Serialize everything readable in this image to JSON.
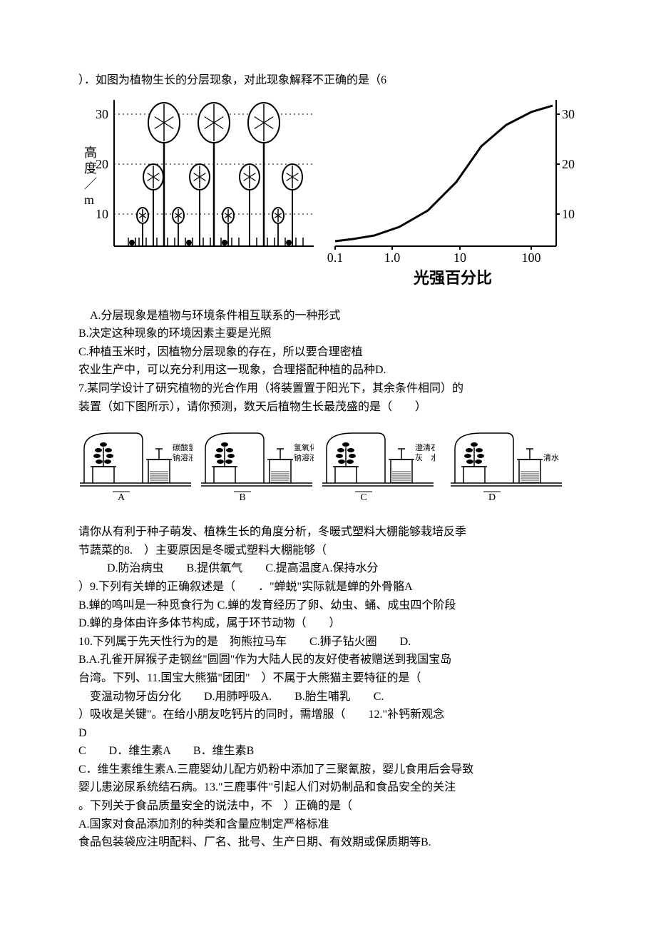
{
  "q6": {
    "stem": "）．如图为植物生长的分层现象，对此现象解释不正确的是（6",
    "optA": "A.分层现象是植物与环境条件相互联系的一种形式",
    "optB": "B.决定这种现象的环境因素主要是光照",
    "optC": "C.种植玉米时，因植物分层现象的存在，所以要合理密植",
    "optD": "农业生产中，可以充分利用这一现象，合理搭配种植的品种D.",
    "chart": {
      "left_axis_label_vertical": "高度／m",
      "left_ticks": [
        {
          "val": 10,
          "y": 170
        },
        {
          "val": 20,
          "y": 100
        },
        {
          "val": 30,
          "y": 30
        }
      ],
      "right_axis_label_vertical": "高度／m",
      "right_ticks": [
        {
          "val": 10,
          "y": 170
        },
        {
          "val": 20,
          "y": 100
        },
        {
          "val": 30,
          "y": 30
        }
      ],
      "x_ticks": [
        "0.1",
        "1.0",
        "10",
        "100"
      ],
      "x_label": "光强百分比",
      "curve_points": [
        [
          0,
          208
        ],
        [
          25,
          205
        ],
        [
          55,
          200
        ],
        [
          90,
          188
        ],
        [
          130,
          165
        ],
        [
          170,
          125
        ],
        [
          205,
          75
        ],
        [
          240,
          45
        ],
        [
          275,
          27
        ],
        [
          305,
          18
        ]
      ],
      "plants": {
        "tall": [
          {
            "x": 70
          },
          {
            "x": 140
          },
          {
            "x": 210
          }
        ],
        "mid": [
          {
            "x": 55
          },
          {
            "x": 120
          },
          {
            "x": 190
          },
          {
            "x": 250
          }
        ],
        "short": [
          {
            "x": 40
          },
          {
            "x": 90
          },
          {
            "x": 160
          },
          {
            "x": 230
          }
        ],
        "grass": [
          20,
          30,
          35,
          45,
          60,
          75,
          85,
          100,
          110,
          125,
          135,
          150,
          165,
          175,
          200,
          215,
          225,
          240,
          255,
          265
        ]
      },
      "stroke": "#000000",
      "fontsize_axis": 18,
      "fontsize_xlabel": 22
    }
  },
  "q7": {
    "stem1": "7.某同学设计了研究植物的光合作用（将装置置于阳光下，其余条件相同）的",
    "stem2": "装置（如下图所示），请你预测，数天后植物生长最茂盛的是（　　）",
    "beakers": [
      {
        "label": "A",
        "text1": "碳酸氢",
        "text2": "钠溶液"
      },
      {
        "label": "B",
        "text1": "氢氧化",
        "text2": "钠溶液"
      },
      {
        "label": "C",
        "text1": "澄清石",
        "text2": "灰　水"
      },
      {
        "label": "D",
        "text1": "",
        "text2": "清水"
      }
    ],
    "beaker_style": {
      "stroke": "#000000",
      "label_fontsize": 14,
      "text_fontsize": 11
    }
  },
  "q8": {
    "l1": "请你从有利于种子萌发、植株生长的角度分析，冬暖式塑料大棚能够栽培反季",
    "l2": "节蔬菜的8.　）主要原因是冬暖式塑料大棚能够（",
    "l3": "D.防治病虫　　B.提供氧气　　C.提高温度A.保持水分"
  },
  "q9": {
    "l1": "）9.下列有关蝉的正确叙述是（　　．\"蝉蜕\"实际就是蝉的外骨骼A",
    "l2": "B.蝉的鸣叫是一种觅食行为 C.蝉的发育经历了卵、幼虫、蛹、成虫四个阶段",
    "l3": "D.蝉的身体由许多体节构成，属于环节动物（　　）"
  },
  "q10": {
    "l1": "10.下列属于先天性行为的是　狗熊拉马车　　C.狮子钻火圈　　D.",
    "l2": "B.A.孔雀开屏猴子走钢丝\"圆圆\"作为大陆人民的友好使者被赠送到我国宝岛"
  },
  "q11": {
    "l1": "台湾。下列、11.国宝大熊猫\"团团\"　）不属于大熊猫主要特征的是（",
    "l2": "　变温动物牙齿分化　　D.用肺呼吸A.　　B.胎生哺乳　　C."
  },
  "q12": {
    "l1": "）吸收是关键\"。在给小朋友吃钙片的同时，需增服（　　12.\"补钙新观念",
    "l2": "D",
    "l3": "C　　D．维生素A　　B．维生素B"
  },
  "q13": {
    "l1": "C．维生素维生素A.三鹿婴幼儿配方奶粉中添加了三聚氰胺，婴儿食用后会导致",
    "l2": "婴儿患泌尿系统结石病。13.\"三鹿事件\"引起人们对奶制品和食品安全的关注",
    "l3": "。下列关于食品质量安全的说法中，不　）正确的是（",
    "l4": "A.国家对食品添加剂的种类和含量应制定严格标准",
    "l5": "食品包装袋应注明配料、厂名、批号、生产日期、有效期或保质期等B."
  }
}
